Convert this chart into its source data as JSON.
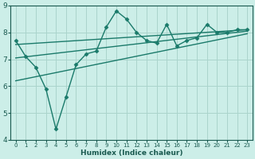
{
  "title": "",
  "xlabel": "Humidex (Indice chaleur)",
  "ylabel": "",
  "background_color": "#cceee8",
  "grid_color": "#aad4cc",
  "line_color": "#1a7a6a",
  "xlim": [
    -0.5,
    23.5
  ],
  "ylim": [
    4,
    9
  ],
  "yticks": [
    4,
    5,
    6,
    7,
    8,
    9
  ],
  "xticks": [
    0,
    1,
    2,
    3,
    4,
    5,
    6,
    7,
    8,
    9,
    10,
    11,
    12,
    13,
    14,
    15,
    16,
    17,
    18,
    19,
    20,
    21,
    22,
    23
  ],
  "series": [
    {
      "x": [
        0,
        1,
        2,
        3,
        4,
        5,
        6,
        7,
        8,
        9,
        10,
        11,
        12,
        13,
        14,
        15,
        16,
        17,
        18,
        19,
        20,
        21,
        22,
        23
      ],
      "y": [
        7.7,
        7.1,
        6.7,
        5.9,
        4.4,
        5.6,
        6.8,
        7.2,
        7.3,
        8.2,
        8.8,
        8.5,
        8.0,
        7.7,
        7.6,
        8.3,
        7.5,
        7.7,
        7.8,
        8.3,
        8.0,
        8.0,
        8.1,
        8.1
      ],
      "has_markers": true
    },
    {
      "x": [
        0,
        23
      ],
      "y": [
        7.55,
        8.1
      ],
      "has_markers": false
    },
    {
      "x": [
        0,
        23
      ],
      "y": [
        7.05,
        8.05
      ],
      "has_markers": false
    },
    {
      "x": [
        0,
        23
      ],
      "y": [
        6.2,
        7.95
      ],
      "has_markers": false
    }
  ],
  "marker": "D",
  "marker_size": 2.5,
  "line_width": 1.0,
  "tick_fontsize": 5.5,
  "xlabel_fontsize": 6.5
}
